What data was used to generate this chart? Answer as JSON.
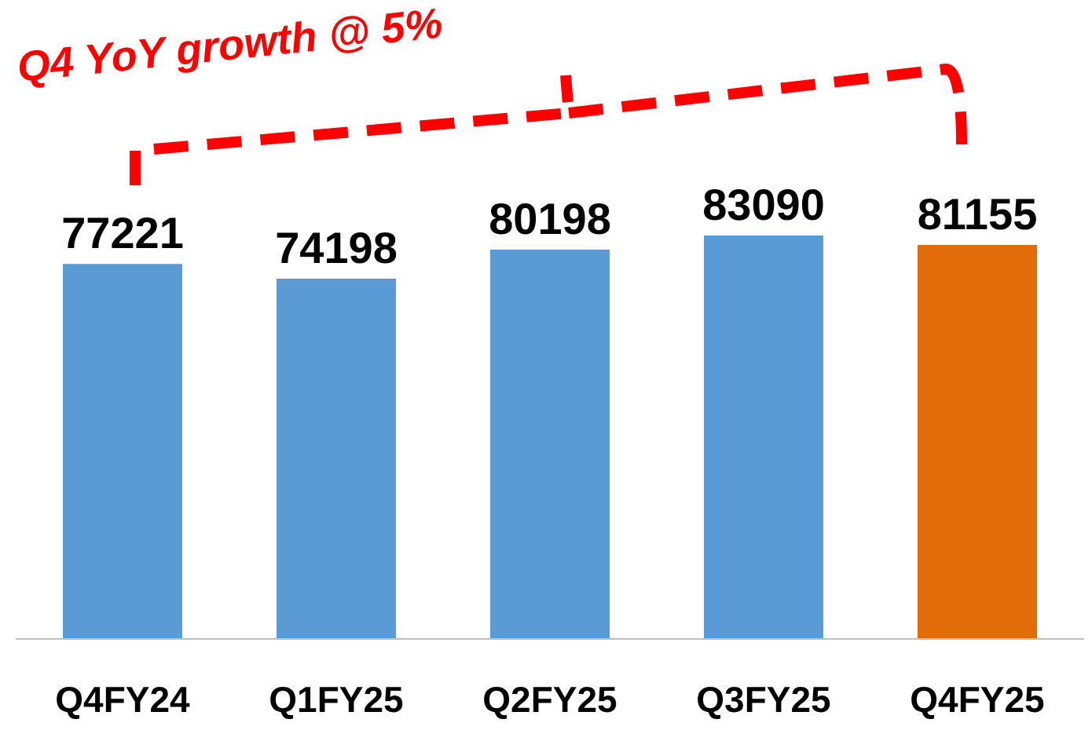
{
  "chart_data": {
    "type": "bar",
    "categories": [
      "Q4FY24",
      "Q1FY25",
      "Q2FY25",
      "Q3FY25",
      "Q4FY25"
    ],
    "values": [
      77221,
      74198,
      80198,
      83090,
      81155
    ],
    "colors": [
      "#5b9bd5",
      "#5b9bd5",
      "#5b9bd5",
      "#5b9bd5",
      "#e36c0a"
    ],
    "tick_labels": "x",
    "data_labels": true,
    "annotations": [
      "Q4 YoY growth @ 5%"
    ]
  }
}
